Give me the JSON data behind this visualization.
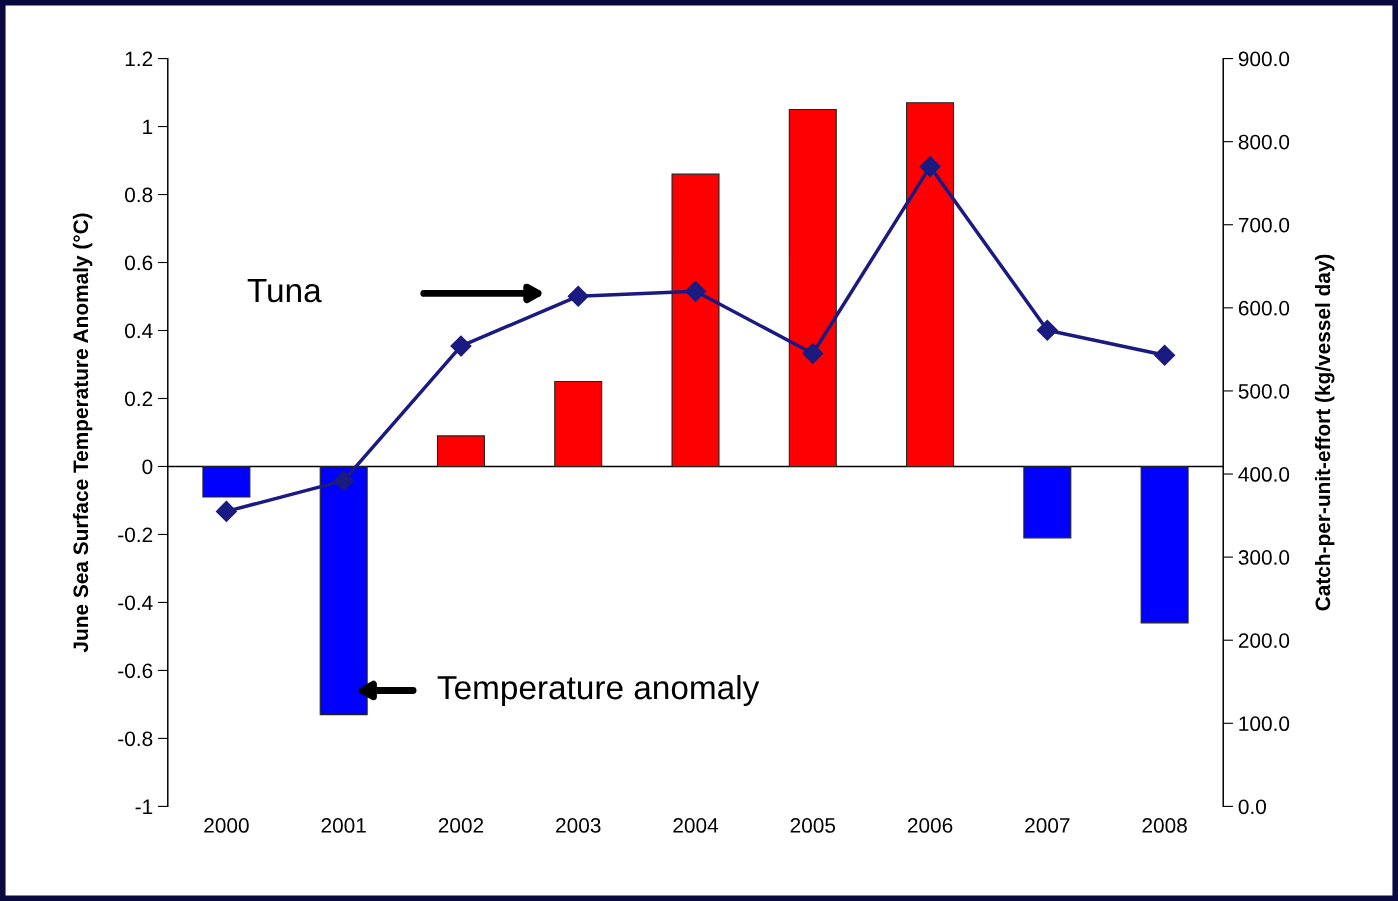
{
  "chart_data": {
    "type": "bar",
    "ylabel": "June Sea Surface Temperature Anomaly (°C)",
    "y2label": "Catch-per-unit-effort (kg/vessel day)",
    "categories": [
      "2000",
      "2001",
      "2002",
      "2003",
      "2004",
      "2005",
      "2006",
      "2007",
      "2008"
    ],
    "series": [
      {
        "colors": [
          "#0000ff",
          "#0000ff",
          "#ff0000",
          "#ff0000",
          "#ff0000",
          "#ff0000",
          "#ff0000",
          "#0000ff",
          "#0000ff"
        ],
        "values": [
          -0.09,
          -0.73,
          0.09,
          0.25,
          0.86,
          1.05,
          1.07,
          -0.21,
          -0.46
        ]
      },
      {
        "type": "line",
        "axis": "y2",
        "color": "#1a1a80",
        "marker": "diamond",
        "values": [
          355,
          392,
          554,
          614,
          620,
          545,
          770,
          573,
          543
        ]
      }
    ],
    "ylim": [
      -1,
      1.2
    ],
    "yticks": [
      -1,
      -0.8,
      -0.6,
      -0.4,
      -0.2,
      0,
      0.2,
      0.4,
      0.6,
      0.8,
      1,
      1.2
    ],
    "y2lim": [
      0,
      900
    ],
    "y2ticks": [
      {
        "value": 0,
        "label": "0.0"
      },
      {
        "value": 100,
        "label": "100.0"
      },
      {
        "value": 200,
        "label": "200.0"
      },
      {
        "value": 300,
        "label": "300.0"
      },
      {
        "value": 400,
        "label": "400.0"
      },
      {
        "value": 500,
        "label": "500.0"
      },
      {
        "value": 600,
        "label": "600.0"
      },
      {
        "value": 700,
        "label": "700.0"
      },
      {
        "value": 800,
        "label": "800.0"
      },
      {
        "value": 900,
        "label": "900.0"
      }
    ],
    "annotations": [
      "Tuna",
      "Temperature anomaly"
    ],
    "ref_lines": [
      {
        "axis": "y",
        "value": 0,
        "color": "#000000"
      }
    ],
    "grid": false,
    "legend": false
  }
}
